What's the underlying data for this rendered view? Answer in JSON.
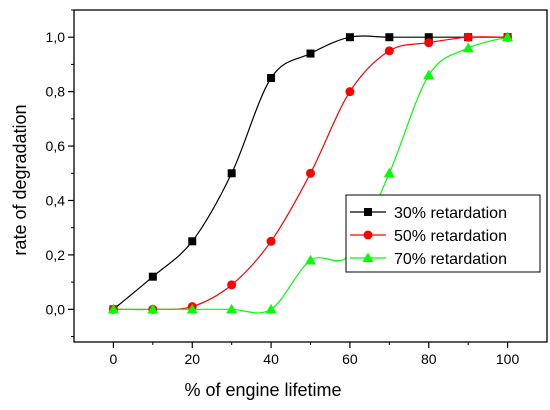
{
  "chart_data": {
    "type": "line",
    "title": "",
    "xlabel": "% of engine lifetime",
    "ylabel": "rate of degradation",
    "xlim": [
      -10,
      110
    ],
    "ylim": [
      -0.12,
      1.1
    ],
    "x_ticks": [
      0,
      20,
      40,
      60,
      80,
      100
    ],
    "x_tick_labels": [
      "0",
      "20",
      "40",
      "60",
      "80",
      "100"
    ],
    "y_ticks": [
      0.0,
      0.2,
      0.4,
      0.6,
      0.8,
      1.0
    ],
    "y_tick_labels": [
      "0,0",
      "0,2",
      "0,4",
      "0,6",
      "0,8",
      "1,0"
    ],
    "grid": false,
    "legend_position": "bottom-right",
    "series": [
      {
        "name": "30% retardation",
        "color": "#000000",
        "marker": "square",
        "x": [
          0,
          10,
          20,
          30,
          40,
          50,
          60,
          70,
          80,
          90,
          100
        ],
        "y": [
          0.0,
          0.12,
          0.25,
          0.5,
          0.85,
          0.94,
          1.0,
          1.0,
          1.0,
          1.0,
          1.0
        ]
      },
      {
        "name": "50% retardation",
        "color": "#ff0000",
        "marker": "circle",
        "x": [
          0,
          10,
          20,
          30,
          40,
          50,
          60,
          70,
          80,
          90,
          100
        ],
        "y": [
          0.0,
          0.0,
          0.01,
          0.09,
          0.25,
          0.5,
          0.8,
          0.95,
          0.98,
          1.0,
          1.0
        ]
      },
      {
        "name": "70% retardation",
        "color": "#00ff00",
        "marker": "triangle",
        "x": [
          0,
          10,
          20,
          30,
          40,
          50,
          60,
          70,
          80,
          90,
          100
        ],
        "y": [
          0.0,
          0.0,
          0.0,
          0.0,
          0.0,
          0.18,
          0.2,
          0.5,
          0.86,
          0.96,
          1.0
        ]
      }
    ]
  }
}
